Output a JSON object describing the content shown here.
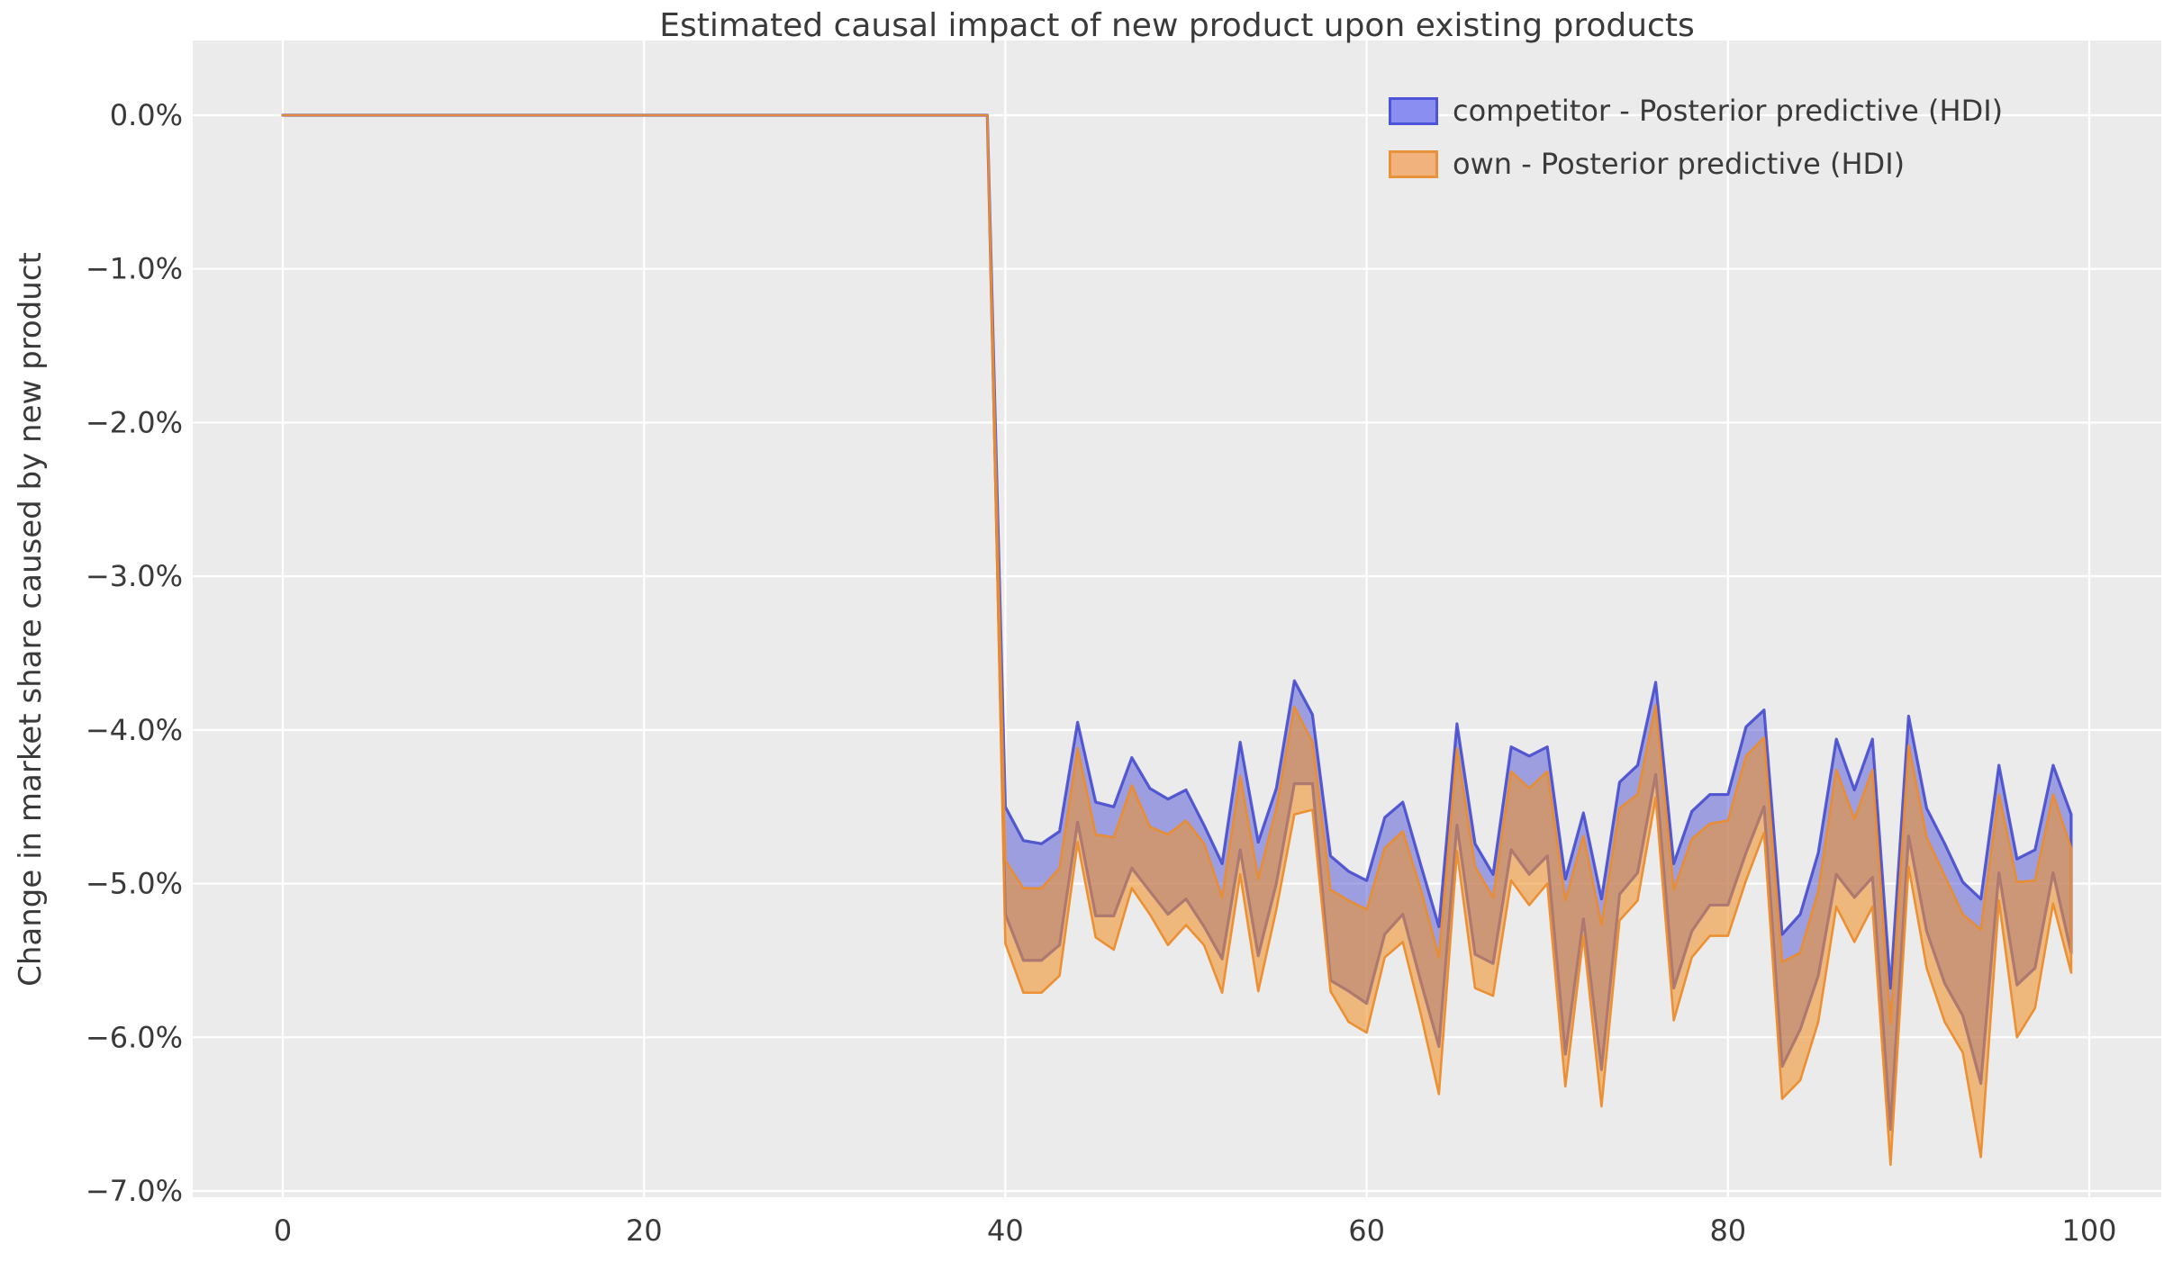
{
  "title": "Estimated causal impact of new product upon existing products",
  "axes": {
    "ylabel": "Change in market share caused by new product",
    "xlabel": "",
    "x_ticks": [
      0,
      20,
      40,
      60,
      80,
      100
    ],
    "y_ticks": [
      {
        "value": 0,
        "label": "0.0%"
      },
      {
        "value": -1,
        "label": "−1.0%"
      },
      {
        "value": -2,
        "label": "−2.0%"
      },
      {
        "value": -3,
        "label": "−3.0%"
      },
      {
        "value": -4,
        "label": "−4.0%"
      },
      {
        "value": -5,
        "label": "−5.0%"
      },
      {
        "value": -6,
        "label": "−6.0%"
      },
      {
        "value": -7,
        "label": "−7.0%"
      }
    ],
    "grid": true
  },
  "colors": {
    "plot_background": "#ebebeb",
    "gridline": "#ffffff",
    "text": "#3a3a3a",
    "competitor_fill": "rgba(77,82,214,0.50)",
    "competitor_edge": "rgba(62,68,205,0.85)",
    "own_fill": "rgba(240,146,43,0.58)",
    "own_edge": "rgba(235,140,45,0.95)",
    "competitor_swatch_fill": "#8a8ef0",
    "competitor_swatch_edge": "#4e54da",
    "own_swatch_fill": "#f2b27e",
    "own_swatch_edge": "#e8933c"
  },
  "legend": [
    {
      "series": "competitor",
      "label": "competitor - Posterior predictive (HDI)"
    },
    {
      "series": "own",
      "label": "own - Posterior predictive (HDI)"
    }
  ],
  "chart_data": {
    "type": "area",
    "title": "Estimated causal impact of new product upon existing products",
    "xlabel": "",
    "ylabel": "Change in market share caused by new product",
    "xlim": [
      -5,
      104
    ],
    "ylim": [
      0.49,
      -7.04
    ],
    "units": "percent change in market share",
    "pre_period": {
      "x_start": 0,
      "x_end": 39,
      "hdi_upper_pct": 0,
      "hdi_lower_pct": 0,
      "note": "Both HDI bands are flat at 0.0% before the intervention at x=39/40"
    },
    "x_post_start": 40,
    "x_post_end": 99,
    "series": [
      {
        "name": "competitor - Posterior predictive (HDI)",
        "hdi_upper_pct": [
          -4.5,
          -4.72,
          -4.74,
          -4.66,
          -3.95,
          -4.47,
          -4.5,
          -4.18,
          -4.38,
          -4.45,
          -4.39,
          -4.62,
          -4.87,
          -4.08,
          -4.73,
          -4.38,
          -3.68,
          -3.9,
          -4.82,
          -4.92,
          -4.98,
          -4.57,
          -4.47,
          -4.88,
          -5.28,
          -3.96,
          -4.74,
          -4.94,
          -4.11,
          -4.17,
          -4.11,
          -4.97,
          -4.54,
          -5.1,
          -4.34,
          -4.23,
          -3.69,
          -4.87,
          -4.53,
          -4.42,
          -4.42,
          -3.98,
          -3.87,
          -5.33,
          -5.2,
          -4.8,
          -4.06,
          -4.39,
          -4.06,
          -5.68,
          -3.91,
          -4.51,
          -4.74,
          -4.99,
          -5.1,
          -4.23,
          -4.84,
          -4.78,
          -4.23,
          -4.55
        ],
        "hdi_lower_pct": [
          -5.2,
          -5.5,
          -5.5,
          -5.4,
          -4.6,
          -5.21,
          -5.21,
          -4.9,
          -5.05,
          -5.2,
          -5.1,
          -5.28,
          -5.49,
          -4.78,
          -5.47,
          -5.0,
          -4.35,
          -4.35,
          -5.63,
          -5.7,
          -5.78,
          -5.33,
          -5.2,
          -5.64,
          -6.06,
          -4.62,
          -5.46,
          -5.52,
          -4.78,
          -4.94,
          -4.82,
          -6.11,
          -5.23,
          -6.21,
          -5.07,
          -4.93,
          -4.29,
          -5.68,
          -5.31,
          -5.14,
          -5.14,
          -4.8,
          -4.5,
          -6.19,
          -5.95,
          -5.6,
          -4.94,
          -5.09,
          -4.96,
          -6.6,
          -4.69,
          -5.31,
          -5.65,
          -5.86,
          -6.3,
          -4.93,
          -5.66,
          -5.55,
          -4.93,
          -5.45
        ]
      },
      {
        "name": "own - Posterior predictive (HDI)",
        "hdi_upper_pct": [
          -4.85,
          -5.03,
          -5.03,
          -4.9,
          -4.12,
          -4.68,
          -4.7,
          -4.36,
          -4.63,
          -4.68,
          -4.59,
          -4.74,
          -5.09,
          -4.3,
          -4.97,
          -4.51,
          -3.85,
          -4.08,
          -5.04,
          -5.11,
          -5.17,
          -4.77,
          -4.66,
          -5.04,
          -5.48,
          -4.12,
          -4.89,
          -5.09,
          -4.27,
          -4.38,
          -4.27,
          -5.11,
          -4.69,
          -5.27,
          -4.51,
          -4.42,
          -3.84,
          -5.04,
          -4.71,
          -4.61,
          -4.59,
          -4.17,
          -4.05,
          -5.51,
          -5.45,
          -5.05,
          -4.26,
          -4.58,
          -4.26,
          -5.91,
          -4.1,
          -4.7,
          -4.95,
          -5.2,
          -5.3,
          -4.42,
          -4.99,
          -4.98,
          -4.42,
          -4.77
        ],
        "hdi_lower_pct": [
          -5.39,
          -5.71,
          -5.71,
          -5.6,
          -4.73,
          -5.35,
          -5.43,
          -5.03,
          -5.2,
          -5.4,
          -5.27,
          -5.4,
          -5.71,
          -4.94,
          -5.7,
          -5.17,
          -4.55,
          -4.52,
          -5.7,
          -5.9,
          -5.97,
          -5.48,
          -5.38,
          -5.85,
          -6.37,
          -4.79,
          -5.68,
          -5.73,
          -4.98,
          -5.14,
          -5.0,
          -6.32,
          -5.34,
          -6.45,
          -5.24,
          -5.11,
          -4.44,
          -5.89,
          -5.48,
          -5.34,
          -5.34,
          -4.98,
          -4.67,
          -6.4,
          -6.28,
          -5.9,
          -5.15,
          -5.38,
          -5.15,
          -6.83,
          -4.89,
          -5.55,
          -5.9,
          -6.1,
          -6.78,
          -5.11,
          -6.0,
          -5.81,
          -5.13,
          -5.58
        ]
      }
    ],
    "legend_position": "upper right"
  }
}
